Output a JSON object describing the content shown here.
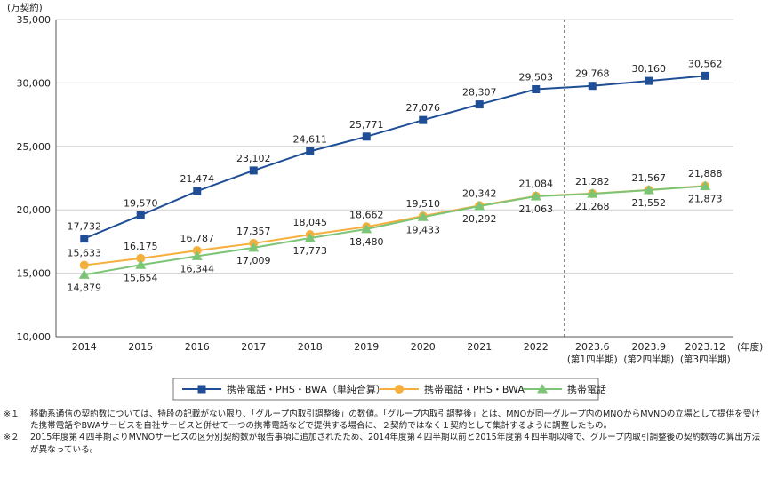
{
  "chart_data": {
    "type": "line",
    "y_unit": "(万契約)",
    "x_unit": "(年度)",
    "categories": [
      "2014",
      "2015",
      "2016",
      "2017",
      "2018",
      "2019",
      "2020",
      "2021",
      "2022",
      "2023.6",
      "2023.9",
      "2023.12"
    ],
    "category_sublabels": [
      "",
      "",
      "",
      "",
      "",
      "",
      "",
      "",
      "",
      "(第1四半期)",
      "(第2四半期)",
      "(第3四半期)"
    ],
    "ylim": [
      10000,
      35000
    ],
    "yticks": [
      10000,
      15000,
      20000,
      25000,
      30000,
      35000
    ],
    "ytick_labels": [
      "10,000",
      "15,000",
      "20,000",
      "25,000",
      "30,000",
      "35,000"
    ],
    "divider_after_category": "2022",
    "series": [
      {
        "name": "携帯電話・PHS・BWA（単純合算）",
        "color": "#1f4e96",
        "marker": "square",
        "values": [
          17732,
          19570,
          21474,
          23102,
          24611,
          25771,
          27076,
          28307,
          29503,
          29768,
          30160,
          30562
        ],
        "labels": [
          "17,732",
          "19,570",
          "21,474",
          "23,102",
          "24,611",
          "25,771",
          "27,076",
          "28,307",
          "29,503",
          "29,768",
          "30,160",
          "30,562"
        ]
      },
      {
        "name": "携帯電話・PHS・BWA",
        "color": "#f6ae3d",
        "marker": "circle",
        "values": [
          15633,
          16175,
          16787,
          17357,
          18045,
          18662,
          19510,
          20342,
          21084,
          21282,
          21567,
          21888
        ],
        "labels": [
          "15,633",
          "16,175",
          "16,787",
          "17,357",
          "18,045",
          "18,662",
          "19,510",
          "20,342",
          "21,084",
          "21,282",
          "21,567",
          "21,888"
        ]
      },
      {
        "name": "携帯電話",
        "color": "#7cc576",
        "marker": "triangle",
        "values": [
          14879,
          15654,
          16344,
          17009,
          17773,
          18480,
          19433,
          20292,
          21063,
          21268,
          21552,
          21873
        ],
        "labels": [
          "14,879",
          "15,654",
          "16,344",
          "17,009",
          "17,773",
          "18,480",
          "19,433",
          "20,292",
          "21,063",
          "21,268",
          "21,552",
          "21,873"
        ]
      }
    ]
  },
  "notes": [
    {
      "mark": "※１",
      "text": "移動系通信の契約数については、特段の記載がない限り、「グループ内取引調整後」の数値。「グループ内取引調整後」とは、MNOが同一グループ内のMNOからMVNOの立場として提供を受けた携帯電話やBWAサービスを自社サービスと併せて一つの携帯電話などで提供する場合に、２契約ではなく１契約として集計するように調整したもの。"
    },
    {
      "mark": "※２",
      "text": "2015年度第４四半期よりMVNOサービスの区分別契約数が報告事項に追加されたため、2014年度第４四半期以前と2015年度第４四半期以降で、グループ内取引調整後の契約数等の算出方法が異なっている。"
    }
  ]
}
